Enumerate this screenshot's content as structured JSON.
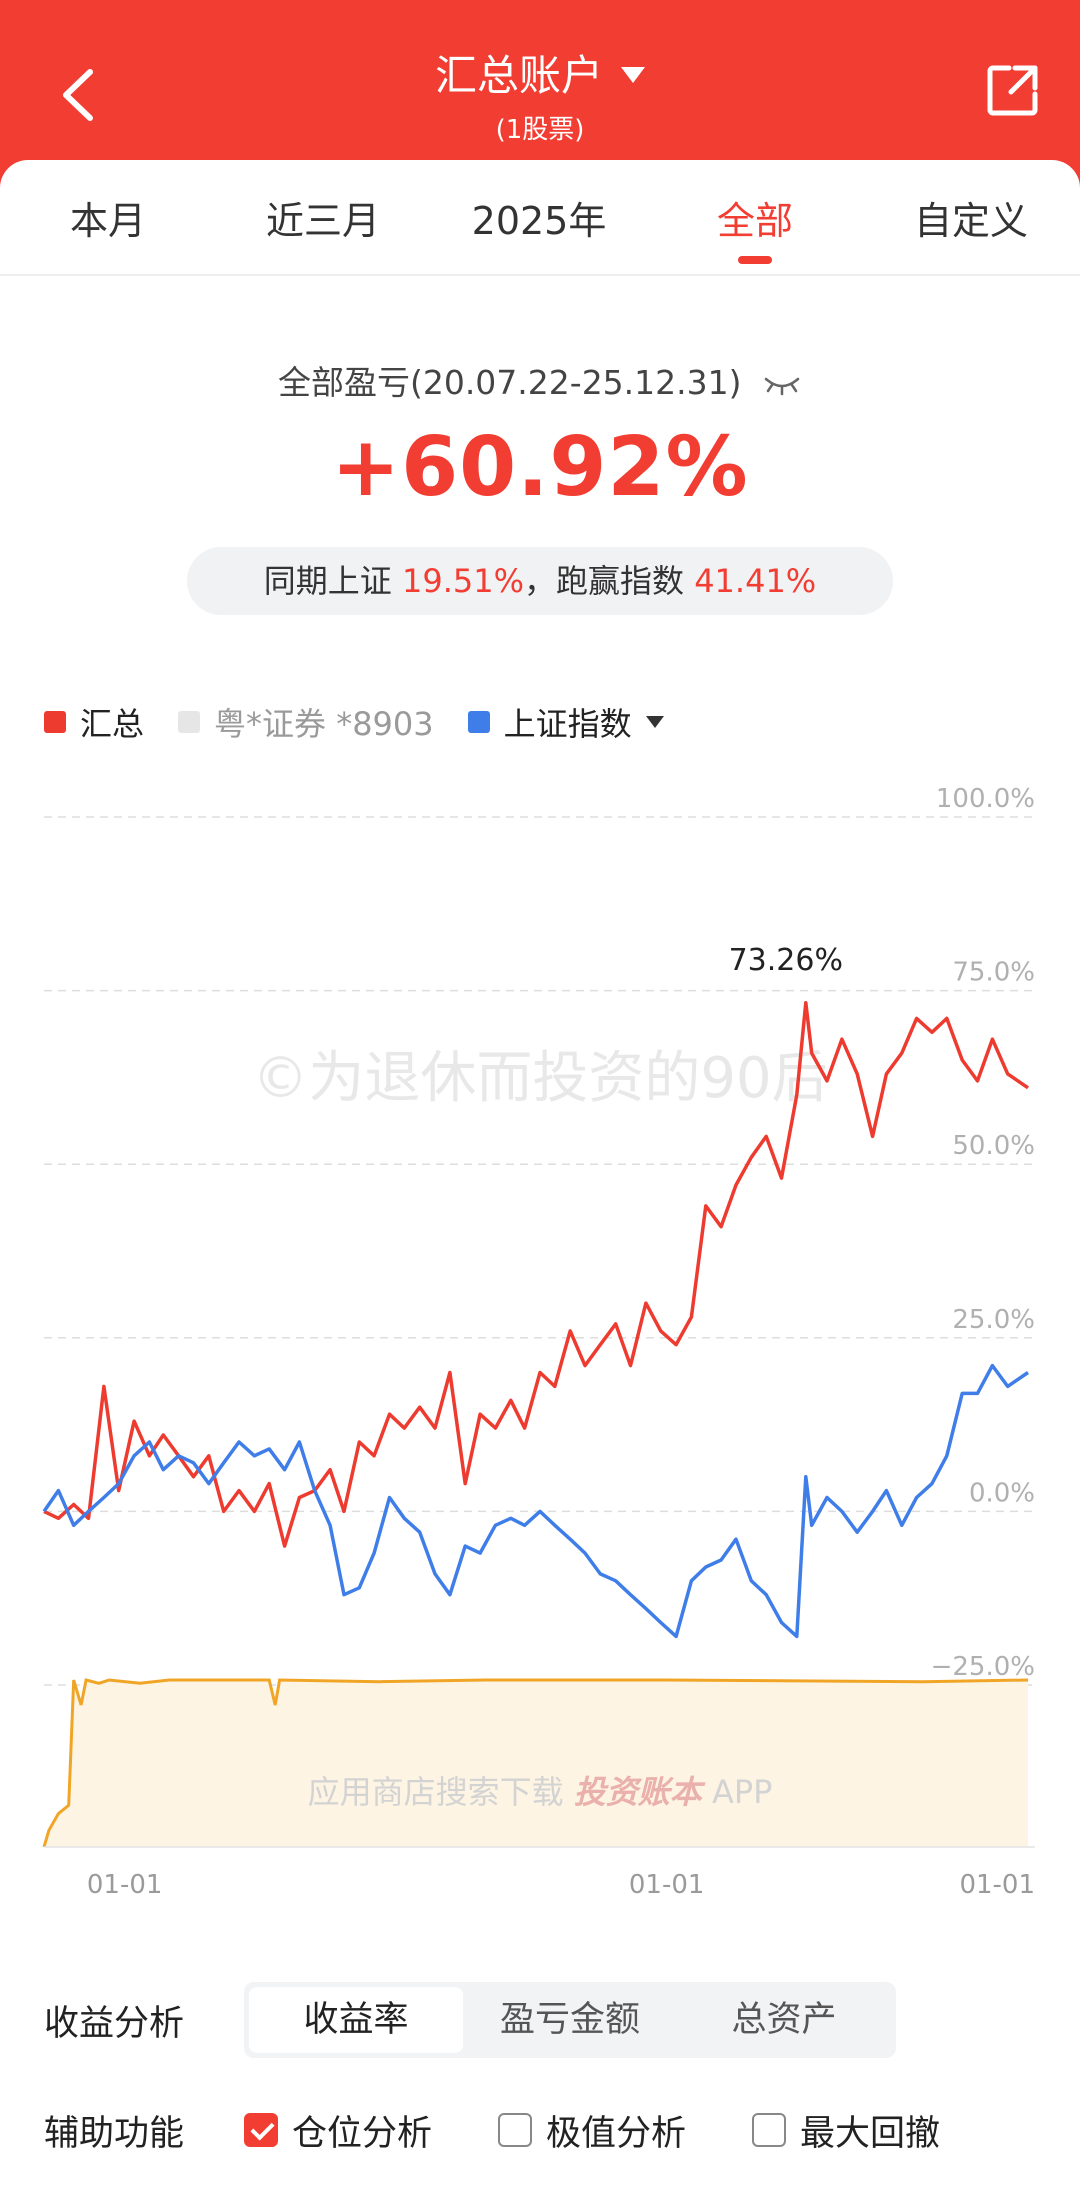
{
  "header": {
    "title": "汇总账户",
    "subtitle": "(1股票)"
  },
  "tabs": [
    {
      "label": "本月",
      "active": false
    },
    {
      "label": "近三月",
      "active": false
    },
    {
      "label": "2025年",
      "active": false
    },
    {
      "label": "全部",
      "active": true
    },
    {
      "label": "自定义",
      "active": false
    }
  ],
  "summary": {
    "label": "全部盈亏(20.07.22-25.12.31)",
    "value": "+60.92%",
    "compare_prefix": "同期上证",
    "compare_index_value": "19.51%",
    "compare_mid": "，跑赢指数",
    "compare_outperform_value": "41.41%"
  },
  "legend": [
    {
      "label": "汇总",
      "color": "#ee3b30"
    },
    {
      "label": "粤*证券 *8903",
      "color": "#e6e6e6"
    },
    {
      "label": "上证指数",
      "color": "#3f7ee8"
    }
  ],
  "chart": {
    "watermark": "©为退休而投资的90后",
    "bottom_watermark_prefix": "应用商店搜索下载",
    "bottom_watermark_app": "投资账本",
    "bottom_watermark_suffix": "APP",
    "peak_label": "73.26%",
    "x_tick_labels": [
      "01-01",
      "01-01",
      "01-01"
    ]
  },
  "chart_data": {
    "type": "line",
    "ylim": [
      -25,
      100
    ],
    "y_tick_labels": [
      "100.0%",
      "75.0%",
      "50.0%",
      "25.0%",
      "0.0%",
      "−25.0%"
    ],
    "y_ticks": [
      100,
      75,
      50,
      25,
      0,
      -25
    ],
    "x_tick_labels": [
      "01-01",
      "01-01",
      "01-01"
    ],
    "x_ticks": [
      "2021-01-01",
      "2024-01-01",
      "2026-01-01"
    ],
    "xlim": [
      "2020-07-22",
      "2025-12-31"
    ],
    "peak_annotation": {
      "label": "73.26%",
      "date": "2024-10-08",
      "value": 73.26
    },
    "series": [
      {
        "name": "汇总",
        "color": "#ee3b30",
        "points": [
          [
            "2020-07-22",
            0
          ],
          [
            "2020-08-20",
            -1
          ],
          [
            "2020-09-20",
            1
          ],
          [
            "2020-10-20",
            -1
          ],
          [
            "2020-11-20",
            18
          ],
          [
            "2020-12-20",
            3
          ],
          [
            "2021-01-20",
            13
          ],
          [
            "2021-02-20",
            8
          ],
          [
            "2021-03-20",
            11
          ],
          [
            "2021-04-20",
            8
          ],
          [
            "2021-05-20",
            5
          ],
          [
            "2021-06-20",
            8
          ],
          [
            "2021-07-20",
            0
          ],
          [
            "2021-08-20",
            3
          ],
          [
            "2021-09-20",
            0
          ],
          [
            "2021-10-20",
            4
          ],
          [
            "2021-11-20",
            -5
          ],
          [
            "2021-12-20",
            2
          ],
          [
            "2022-01-20",
            3
          ],
          [
            "2022-02-20",
            6
          ],
          [
            "2022-03-20",
            0
          ],
          [
            "2022-04-20",
            10
          ],
          [
            "2022-05-20",
            8
          ],
          [
            "2022-06-20",
            14
          ],
          [
            "2022-07-20",
            12
          ],
          [
            "2022-08-20",
            15
          ],
          [
            "2022-09-20",
            12
          ],
          [
            "2022-10-20",
            20
          ],
          [
            "2022-11-20",
            4
          ],
          [
            "2022-12-20",
            14
          ],
          [
            "2023-01-20",
            12
          ],
          [
            "2023-02-20",
            16
          ],
          [
            "2023-03-20",
            12
          ],
          [
            "2023-04-20",
            20
          ],
          [
            "2023-05-20",
            18
          ],
          [
            "2023-06-20",
            26
          ],
          [
            "2023-07-20",
            21
          ],
          [
            "2023-08-20",
            24
          ],
          [
            "2023-09-20",
            27
          ],
          [
            "2023-10-20",
            21
          ],
          [
            "2023-11-20",
            30
          ],
          [
            "2023-12-20",
            26
          ],
          [
            "2024-01-20",
            24
          ],
          [
            "2024-02-20",
            28
          ],
          [
            "2024-03-20",
            44
          ],
          [
            "2024-04-20",
            41
          ],
          [
            "2024-05-20",
            47
          ],
          [
            "2024-06-20",
            51
          ],
          [
            "2024-07-20",
            54
          ],
          [
            "2024-08-20",
            48
          ],
          [
            "2024-09-20",
            60
          ],
          [
            "2024-10-08",
            73.26
          ],
          [
            "2024-10-20",
            66
          ],
          [
            "2024-11-20",
            62
          ],
          [
            "2024-12-20",
            68
          ],
          [
            "2025-01-20",
            63
          ],
          [
            "2025-02-20",
            54
          ],
          [
            "2025-03-20",
            63
          ],
          [
            "2025-04-20",
            66
          ],
          [
            "2025-05-20",
            71
          ],
          [
            "2025-06-20",
            69
          ],
          [
            "2025-07-20",
            71
          ],
          [
            "2025-08-20",
            65
          ],
          [
            "2025-09-20",
            62
          ],
          [
            "2025-10-20",
            68
          ],
          [
            "2025-11-20",
            63
          ],
          [
            "2025-12-31",
            61
          ]
        ]
      },
      {
        "name": "上证指数",
        "color": "#3f7ee8",
        "points": [
          [
            "2020-07-22",
            0
          ],
          [
            "2020-08-20",
            3
          ],
          [
            "2020-09-20",
            -2
          ],
          [
            "2020-10-20",
            0
          ],
          [
            "2020-11-20",
            2
          ],
          [
            "2020-12-20",
            4
          ],
          [
            "2021-01-20",
            8
          ],
          [
            "2021-02-20",
            10
          ],
          [
            "2021-03-20",
            6
          ],
          [
            "2021-04-20",
            8
          ],
          [
            "2021-05-20",
            7
          ],
          [
            "2021-06-20",
            4
          ],
          [
            "2021-07-20",
            7
          ],
          [
            "2021-08-20",
            10
          ],
          [
            "2021-09-20",
            8
          ],
          [
            "2021-10-20",
            9
          ],
          [
            "2021-11-20",
            6
          ],
          [
            "2021-12-20",
            10
          ],
          [
            "2022-01-20",
            3
          ],
          [
            "2022-02-20",
            -2
          ],
          [
            "2022-03-20",
            -12
          ],
          [
            "2022-04-20",
            -11
          ],
          [
            "2022-05-20",
            -6
          ],
          [
            "2022-06-20",
            2
          ],
          [
            "2022-07-20",
            -1
          ],
          [
            "2022-08-20",
            -3
          ],
          [
            "2022-09-20",
            -9
          ],
          [
            "2022-10-20",
            -12
          ],
          [
            "2022-11-20",
            -5
          ],
          [
            "2022-12-20",
            -6
          ],
          [
            "2023-01-20",
            -2
          ],
          [
            "2023-02-20",
            -1
          ],
          [
            "2023-03-20",
            -2
          ],
          [
            "2023-04-20",
            0
          ],
          [
            "2023-05-20",
            -2
          ],
          [
            "2023-06-20",
            -4
          ],
          [
            "2023-07-20",
            -6
          ],
          [
            "2023-08-20",
            -9
          ],
          [
            "2023-09-20",
            -10
          ],
          [
            "2023-10-20",
            -12
          ],
          [
            "2023-11-20",
            -14
          ],
          [
            "2023-12-20",
            -16
          ],
          [
            "2024-01-20",
            -18
          ],
          [
            "2024-02-20",
            -10
          ],
          [
            "2024-03-20",
            -8
          ],
          [
            "2024-04-20",
            -7
          ],
          [
            "2024-05-20",
            -4
          ],
          [
            "2024-06-20",
            -10
          ],
          [
            "2024-07-20",
            -12
          ],
          [
            "2024-08-20",
            -16
          ],
          [
            "2024-09-20",
            -18
          ],
          [
            "2024-10-08",
            5
          ],
          [
            "2024-10-20",
            -2
          ],
          [
            "2024-11-20",
            2
          ],
          [
            "2024-12-20",
            0
          ],
          [
            "2025-01-20",
            -3
          ],
          [
            "2025-02-20",
            0
          ],
          [
            "2025-03-20",
            3
          ],
          [
            "2025-04-20",
            -2
          ],
          [
            "2025-05-20",
            2
          ],
          [
            "2025-06-20",
            4
          ],
          [
            "2025-07-20",
            8
          ],
          [
            "2025-08-20",
            17
          ],
          [
            "2025-09-20",
            17
          ],
          [
            "2025-10-20",
            21
          ],
          [
            "2025-11-20",
            18
          ],
          [
            "2025-12-31",
            20
          ]
        ]
      }
    ],
    "position_series": {
      "name": "仓位分析",
      "color": "#f1a526",
      "fill": "#fdf4e3",
      "ylim": [
        0,
        100
      ],
      "points": [
        [
          "2020-07-22",
          0
        ],
        [
          "2020-08-01",
          10
        ],
        [
          "2020-08-20",
          20
        ],
        [
          "2020-09-10",
          25
        ],
        [
          "2020-09-20",
          100
        ],
        [
          "2020-10-05",
          85
        ],
        [
          "2020-10-15",
          100
        ],
        [
          "2020-11-10",
          98
        ],
        [
          "2020-12-01",
          100
        ],
        [
          "2021-02-01",
          98
        ],
        [
          "2021-04-01",
          100
        ],
        [
          "2021-10-20",
          100
        ],
        [
          "2021-11-01",
          85
        ],
        [
          "2021-11-10",
          100
        ],
        [
          "2022-06-01",
          99
        ],
        [
          "2023-01-01",
          100
        ],
        [
          "2024-01-01",
          100
        ],
        [
          "2025-06-01",
          99
        ],
        [
          "2025-12-31",
          100
        ]
      ]
    }
  },
  "analysis": {
    "label": "收益分析",
    "options": [
      {
        "label": "收益率",
        "active": true
      },
      {
        "label": "盈亏金额",
        "active": false
      },
      {
        "label": "总资产",
        "active": false
      }
    ]
  },
  "aux": {
    "label": "辅助功能",
    "options": [
      {
        "label": "仓位分析",
        "checked": true
      },
      {
        "label": "极值分析",
        "checked": false
      },
      {
        "label": "最大回撤",
        "checked": false
      }
    ]
  }
}
